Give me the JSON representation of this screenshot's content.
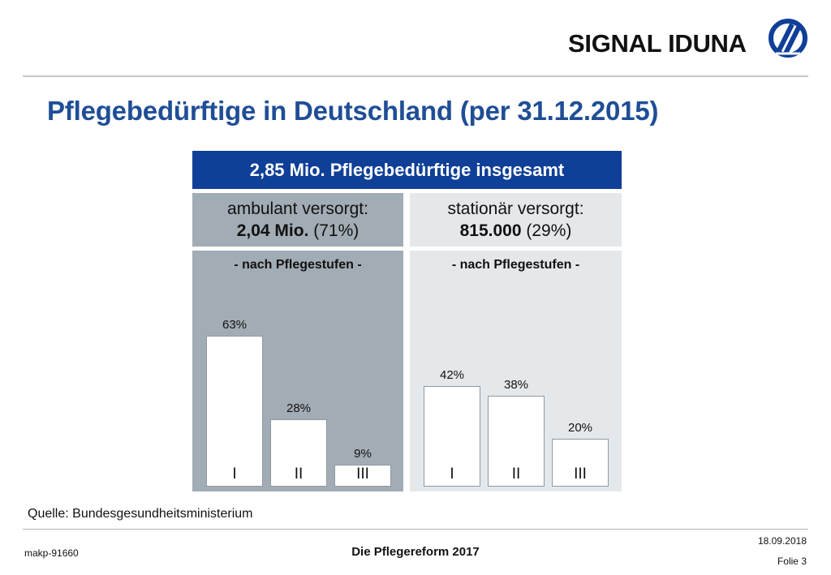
{
  "header": {
    "logo_text": "SIGNAL IDUNA",
    "logo_icon": "signal-iduna-logo-icon",
    "brand_color": "#0f3f97"
  },
  "title": "Pflegebedürftige in Deutschland (per 31.12.2015)",
  "total": "2,85 Mio. Pflegebedürftige insgesamt",
  "ambulant": {
    "label": "ambulant versorgt:",
    "value": "2,04 Mio.",
    "share": "(71%)",
    "subtitle": "- nach Pflegestufen -"
  },
  "stationaer": {
    "label": "stationär versorgt:",
    "value": "815.000",
    "share": "(29%)",
    "subtitle": "- nach Pflegestufen -"
  },
  "chart_data": [
    {
      "type": "bar",
      "group": "ambulant",
      "categories": [
        "I",
        "II",
        "III"
      ],
      "values": [
        63,
        28,
        9
      ],
      "value_labels": [
        "63%",
        "28%",
        "9%"
      ],
      "ylim": [
        0,
        63
      ]
    },
    {
      "type": "bar",
      "group": "stationaer",
      "categories": [
        "I",
        "II",
        "III"
      ],
      "values": [
        42,
        38,
        20
      ],
      "value_labels": [
        "42%",
        "38%",
        "20%"
      ],
      "ylim": [
        0,
        63
      ]
    }
  ],
  "source": "Quelle: Bundesgesundheitsministerium",
  "footer": {
    "id": "makp-91660",
    "title": "Die Pflegereform 2017",
    "date": "18.09.2018",
    "slide": "Folie 3"
  }
}
